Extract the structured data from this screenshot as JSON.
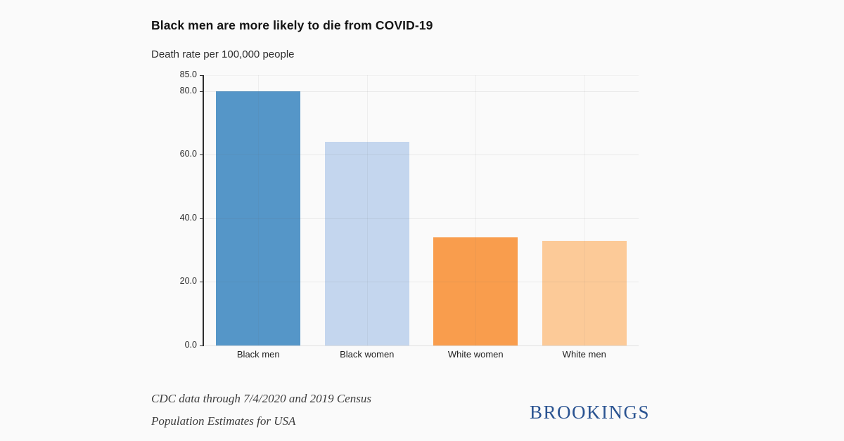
{
  "header": {
    "title": "Black men are more likely to die from COVID-19",
    "subtitle": "Death rate per 100,000 people"
  },
  "chart_data": {
    "type": "bar",
    "title": "Black men are more likely to die from COVID-19",
    "subtitle": "Death rate per 100,000 people",
    "categories": [
      "Black men",
      "Black women",
      "White women",
      "White men"
    ],
    "values": [
      80,
      64,
      34,
      33
    ],
    "bar_colors": [
      "#5596c8",
      "#c4d6ee",
      "#f99d4d",
      "#fcca98"
    ],
    "xlabel": "",
    "ylabel": "Death rate per 100,000 people",
    "ylim": [
      0,
      85
    ],
    "yticks": [
      0,
      20,
      40,
      60,
      80,
      85
    ],
    "ytick_labels": [
      "0.0",
      "20.0",
      "40.0",
      "60.0",
      "80.0",
      "85.0"
    ],
    "grid": true,
    "legend": false
  },
  "footer": {
    "source_line1": "CDC data through 7/4/2020 and 2019 Census",
    "source_line2": "Population Estimates for USA",
    "logo_text": "BROOKINGS",
    "logo_color": "#2a5391"
  },
  "colors": {
    "background": "#fafafa",
    "axis": "#2d2d2d",
    "gridline": "#e6e6e6"
  }
}
